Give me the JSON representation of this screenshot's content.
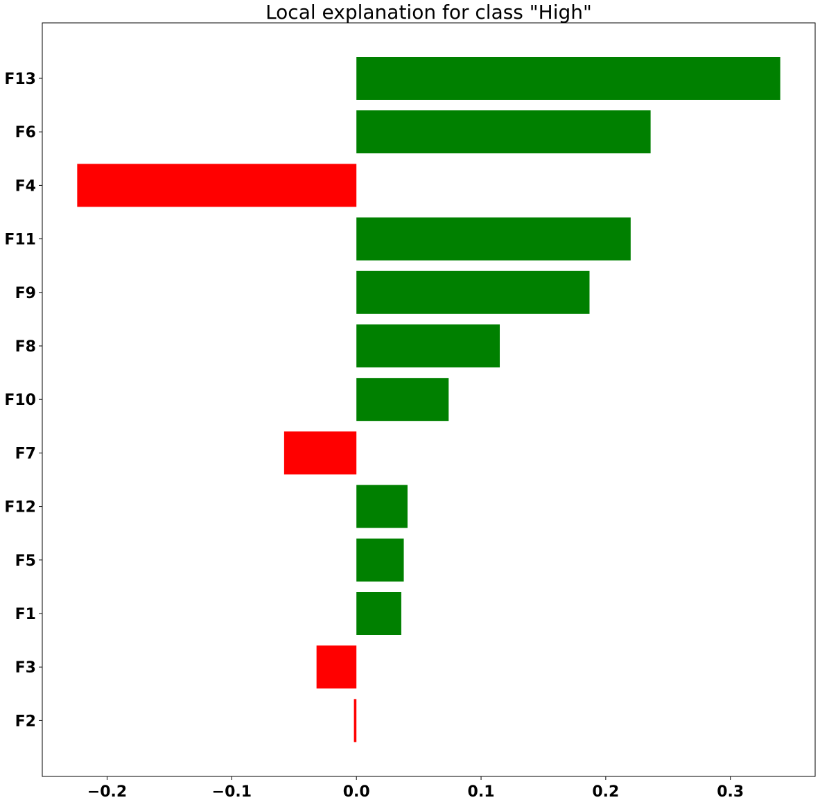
{
  "chart_data": {
    "type": "bar",
    "orientation": "horizontal",
    "title": "Local explanation for class \"High\"",
    "xlabel": "",
    "ylabel": "",
    "categories": [
      "F13",
      "F6",
      "F4",
      "F11",
      "F9",
      "F8",
      "F10",
      "F7",
      "F12",
      "F5",
      "F1",
      "F3",
      "F2"
    ],
    "values": [
      0.34,
      0.236,
      -0.224,
      0.22,
      0.187,
      0.115,
      0.074,
      -0.058,
      0.041,
      0.038,
      0.036,
      -0.032,
      -0.002
    ],
    "xlim": [
      -0.252,
      0.368
    ],
    "xticks": [
      -0.2,
      -0.1,
      0.0,
      0.1,
      0.2,
      0.3
    ],
    "xtick_labels": [
      "−0.2",
      "−0.1",
      "0.0",
      "0.1",
      "0.2",
      "0.3"
    ],
    "colors": {
      "positive": "#008000",
      "negative": "#ff0000"
    },
    "grid": false,
    "legend": "none"
  }
}
